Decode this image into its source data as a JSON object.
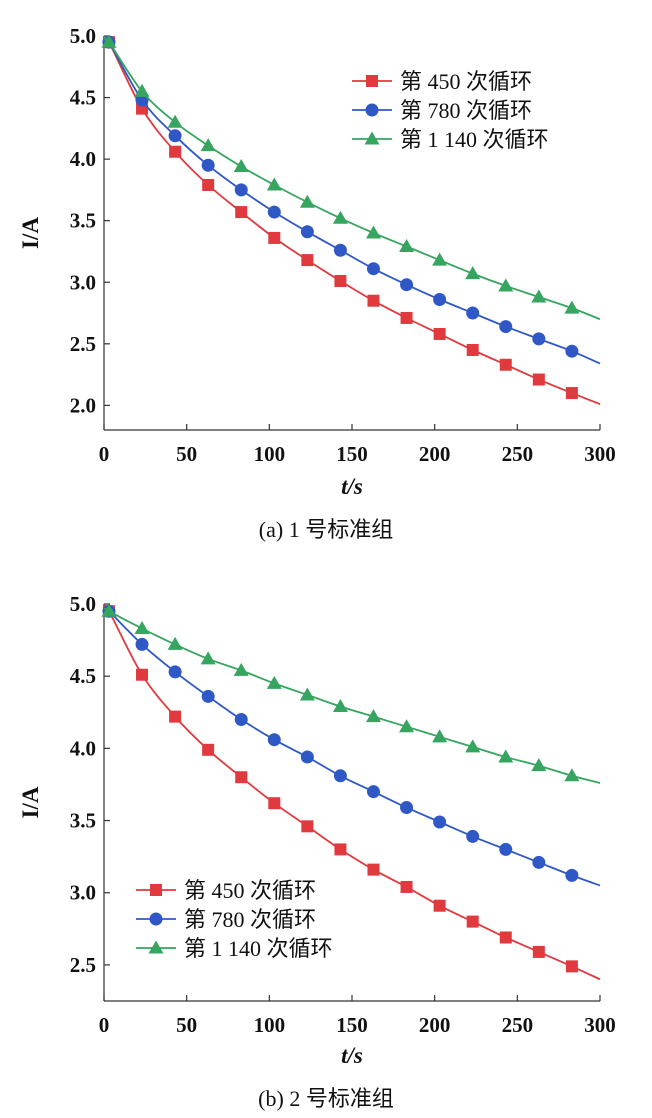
{
  "chart_data": [
    {
      "type": "line",
      "caption": "(a) 1 号标准组",
      "xlabel": "t/s",
      "ylabel": "I/A",
      "xlim": [
        0,
        300
      ],
      "ylim": [
        1.8,
        5.0
      ],
      "xticks": [
        0,
        50,
        100,
        150,
        200,
        250,
        300
      ],
      "xtick_labels": [
        "0",
        "50",
        "100",
        "150",
        "200",
        "250",
        "300"
      ],
      "yticks": [
        2.0,
        2.5,
        3.0,
        3.5,
        4.0,
        4.5,
        5.0
      ],
      "ytick_labels": [
        "2.0",
        "2.5",
        "3.0",
        "3.5",
        "4.0",
        "4.5",
        "5.0"
      ],
      "legend_position": "top-right",
      "series": [
        {
          "name": "第 450 次循环",
          "color": "#e0393e",
          "marker": "square",
          "x": [
            0,
            3,
            23,
            43,
            63,
            83,
            103,
            123,
            143,
            163,
            183,
            203,
            223,
            243,
            263,
            283,
            300
          ],
          "y": [
            4.97,
            4.95,
            4.41,
            4.06,
            3.79,
            3.57,
            3.36,
            3.18,
            3.01,
            2.85,
            2.71,
            2.58,
            2.45,
            2.33,
            2.21,
            2.1,
            2.01
          ]
        },
        {
          "name": "第 780 次循环",
          "color": "#2f58c6",
          "marker": "circle",
          "x": [
            0,
            3,
            23,
            43,
            63,
            83,
            103,
            123,
            143,
            163,
            183,
            203,
            223,
            243,
            263,
            283,
            300
          ],
          "y": [
            4.97,
            4.95,
            4.48,
            4.19,
            3.95,
            3.75,
            3.57,
            3.41,
            3.26,
            3.11,
            2.98,
            2.86,
            2.75,
            2.64,
            2.54,
            2.44,
            2.34
          ]
        },
        {
          "name": "第 1 140 次循环",
          "color": "#35a55f",
          "marker": "triangle",
          "x": [
            0,
            3,
            23,
            43,
            63,
            83,
            103,
            123,
            143,
            163,
            183,
            203,
            223,
            243,
            263,
            283,
            300
          ],
          "y": [
            4.97,
            4.95,
            4.55,
            4.3,
            4.11,
            3.94,
            3.79,
            3.65,
            3.52,
            3.4,
            3.29,
            3.18,
            3.07,
            2.97,
            2.88,
            2.79,
            2.7
          ]
        }
      ]
    },
    {
      "type": "line",
      "caption": "(b) 2 号标准组",
      "xlabel": "t/s",
      "ylabel": "I/A",
      "xlim": [
        0,
        300
      ],
      "ylim": [
        2.25,
        5.0
      ],
      "xticks": [
        0,
        50,
        100,
        150,
        200,
        250,
        300
      ],
      "xtick_labels": [
        "0",
        "50",
        "100",
        "150",
        "200",
        "250",
        "300"
      ],
      "yticks": [
        2.5,
        3.0,
        3.5,
        4.0,
        4.5,
        5.0
      ],
      "ytick_labels": [
        "2.5",
        "3.0",
        "3.5",
        "4.0",
        "4.5",
        "5.0"
      ],
      "legend_position": "bottom-left",
      "series": [
        {
          "name": "第 450 次循环",
          "color": "#e0393e",
          "marker": "square",
          "x": [
            0,
            3,
            23,
            43,
            63,
            83,
            103,
            123,
            143,
            163,
            183,
            203,
            223,
            243,
            263,
            283,
            300
          ],
          "y": [
            4.97,
            4.95,
            4.51,
            4.22,
            3.99,
            3.8,
            3.62,
            3.46,
            3.3,
            3.16,
            3.04,
            2.91,
            2.8,
            2.69,
            2.59,
            2.49,
            2.4
          ]
        },
        {
          "name": "第 780 次循环",
          "color": "#2f58c6",
          "marker": "circle",
          "x": [
            0,
            3,
            23,
            43,
            63,
            83,
            103,
            123,
            143,
            163,
            183,
            203,
            223,
            243,
            263,
            283,
            300
          ],
          "y": [
            4.97,
            4.95,
            4.72,
            4.53,
            4.36,
            4.2,
            4.06,
            3.94,
            3.81,
            3.7,
            3.59,
            3.49,
            3.39,
            3.3,
            3.21,
            3.12,
            3.05
          ]
        },
        {
          "name": "第 1 140 次循环",
          "color": "#35a55f",
          "marker": "triangle",
          "x": [
            0,
            3,
            23,
            43,
            63,
            83,
            103,
            123,
            143,
            163,
            183,
            203,
            223,
            243,
            263,
            283,
            300
          ],
          "y": [
            4.97,
            4.95,
            4.83,
            4.72,
            4.62,
            4.54,
            4.45,
            4.37,
            4.29,
            4.22,
            4.15,
            4.08,
            4.01,
            3.94,
            3.88,
            3.81,
            3.76
          ]
        }
      ]
    }
  ]
}
